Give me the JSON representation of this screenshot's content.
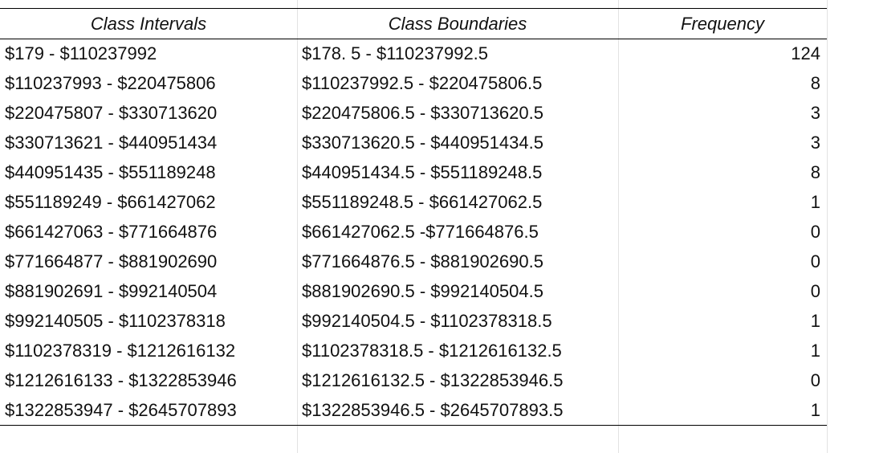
{
  "table": {
    "headers": [
      "Class Intervals",
      "Class Boundaries",
      "Frequency"
    ],
    "rows": [
      [
        "$179 - $110237992",
        "$178. 5 - $110237992.5",
        "124"
      ],
      [
        "$110237993 - $220475806",
        "$110237992.5 - $220475806.5",
        "8"
      ],
      [
        "$220475807 - $330713620",
        "$220475806.5 - $330713620.5",
        "3"
      ],
      [
        "$330713621 - $440951434",
        "$330713620.5 - $440951434.5",
        "3"
      ],
      [
        "$440951435 - $551189248",
        "$440951434.5 - $551189248.5",
        "8"
      ],
      [
        "$551189249 - $661427062",
        "$551189248.5 - $661427062.5",
        "1"
      ],
      [
        "$661427063 - $771664876",
        " $661427062.5 -$771664876.5",
        "0"
      ],
      [
        "$771664877 - $881902690",
        "$771664876.5 - $881902690.5",
        "0"
      ],
      [
        "$881902691 - $992140504",
        "$881902690.5 - $992140504.5",
        "0"
      ],
      [
        "$992140505 - $1102378318",
        " $992140504.5 - $1102378318.5",
        "1"
      ],
      [
        "$1102378319 - $1212616132",
        "$1102378318.5 - $1212616132.5",
        "1"
      ],
      [
        "$1212616133 - $1322853946",
        "$1212616132.5 - $1322853946.5",
        "0"
      ],
      [
        "$1322853947 - $2645707893",
        "$1322853946.5 - $2645707893.5",
        "1"
      ]
    ]
  }
}
